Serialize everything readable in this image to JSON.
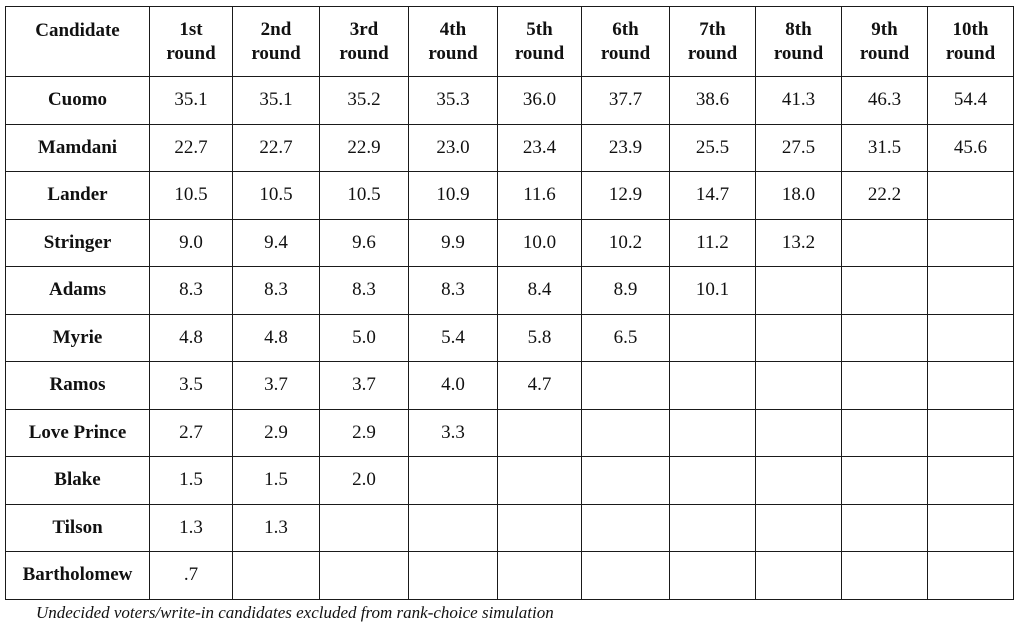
{
  "table": {
    "header": {
      "candidate": "Candidate",
      "rounds": [
        {
          "ordinal": "1st",
          "word": "round"
        },
        {
          "ordinal": "2nd",
          "word": "round"
        },
        {
          "ordinal": "3rd",
          "word": "round"
        },
        {
          "ordinal": "4th",
          "word": "round"
        },
        {
          "ordinal": "5th",
          "word": "round"
        },
        {
          "ordinal": "6th",
          "word": "round"
        },
        {
          "ordinal": "7th",
          "word": "round"
        },
        {
          "ordinal": "8th",
          "word": "round"
        },
        {
          "ordinal": "9th",
          "word": "round"
        },
        {
          "ordinal": "10th",
          "word": "round"
        }
      ]
    },
    "rows": [
      {
        "candidate": "Cuomo",
        "values": [
          "35.1",
          "35.1",
          "35.2",
          "35.3",
          "36.0",
          "37.7",
          "38.6",
          "41.3",
          "46.3",
          "54.4"
        ]
      },
      {
        "candidate": "Mamdani",
        "values": [
          "22.7",
          "22.7",
          "22.9",
          "23.0",
          "23.4",
          "23.9",
          "25.5",
          "27.5",
          "31.5",
          "45.6"
        ]
      },
      {
        "candidate": "Lander",
        "values": [
          "10.5",
          "10.5",
          "10.5",
          "10.9",
          "11.6",
          "12.9",
          "14.7",
          "18.0",
          "22.2",
          ""
        ]
      },
      {
        "candidate": "Stringer",
        "values": [
          "9.0",
          "9.4",
          "9.6",
          "9.9",
          "10.0",
          "10.2",
          "11.2",
          "13.2",
          "",
          ""
        ]
      },
      {
        "candidate": "Adams",
        "values": [
          "8.3",
          "8.3",
          "8.3",
          "8.3",
          "8.4",
          "8.9",
          "10.1",
          "",
          "",
          ""
        ]
      },
      {
        "candidate": "Myrie",
        "values": [
          "4.8",
          "4.8",
          "5.0",
          "5.4",
          "5.8",
          "6.5",
          "",
          "",
          "",
          ""
        ]
      },
      {
        "candidate": "Ramos",
        "values": [
          "3.5",
          "3.7",
          "3.7",
          "4.0",
          "4.7",
          "",
          "",
          "",
          "",
          ""
        ]
      },
      {
        "candidate": "Love Prince",
        "values": [
          "2.7",
          "2.9",
          "2.9",
          "3.3",
          "",
          "",
          "",
          "",
          "",
          ""
        ]
      },
      {
        "candidate": "Blake",
        "values": [
          "1.5",
          "1.5",
          "2.0",
          "",
          "",
          "",
          "",
          "",
          "",
          ""
        ]
      },
      {
        "candidate": "Tilson",
        "values": [
          "1.3",
          "1.3",
          "",
          "",
          "",
          "",
          "",
          "",
          "",
          ""
        ]
      },
      {
        "candidate": "Bartholomew",
        "values": [
          ".7",
          "",
          "",
          "",
          "",
          "",
          "",
          "",
          "",
          ""
        ]
      }
    ]
  },
  "footnote": "Undecided voters/write-in candidates excluded from rank-choice simulation"
}
